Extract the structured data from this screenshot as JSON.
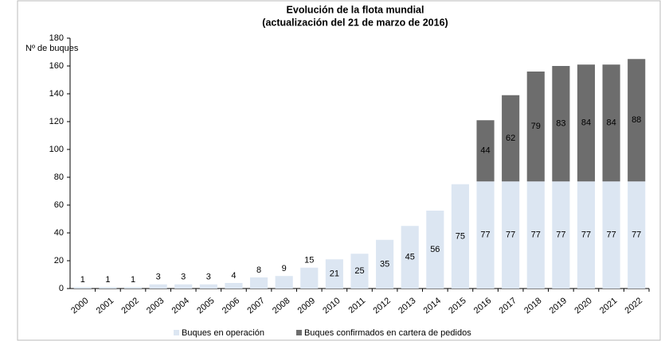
{
  "chart_data": {
    "type": "stacked_bar",
    "title": "Evolución de la flota mundial",
    "subtitle": "(actualización del 21 de marzo de 2016)",
    "y_label": "Nº de buques",
    "categories": [
      "2000",
      "2001",
      "2002",
      "2003",
      "2004",
      "2005",
      "2006",
      "2007",
      "2008",
      "2009",
      "2010",
      "2011",
      "2012",
      "2013",
      "2014",
      "2015",
      "2016",
      "2017",
      "2018",
      "2019",
      "2020",
      "2021",
      "2022"
    ],
    "series": [
      {
        "name": "Buques en operación",
        "color": "#dce6f2",
        "values": [
          1,
          1,
          1,
          3,
          3,
          3,
          4,
          8,
          9,
          15,
          21,
          25,
          35,
          45,
          56,
          75,
          77,
          77,
          77,
          77,
          77,
          77,
          77
        ]
      },
      {
        "name": "Buques confirmados en  cartera de pedidos",
        "color": "#6d6d6d",
        "values": [
          null,
          null,
          null,
          null,
          null,
          null,
          null,
          null,
          null,
          null,
          null,
          null,
          null,
          null,
          null,
          null,
          44,
          62,
          79,
          83,
          84,
          84,
          88
        ]
      }
    ],
    "ylim": [
      0,
      180
    ],
    "yticks": [
      0,
      20,
      40,
      60,
      80,
      100,
      120,
      140,
      160,
      180
    ],
    "legend": "bottom"
  }
}
